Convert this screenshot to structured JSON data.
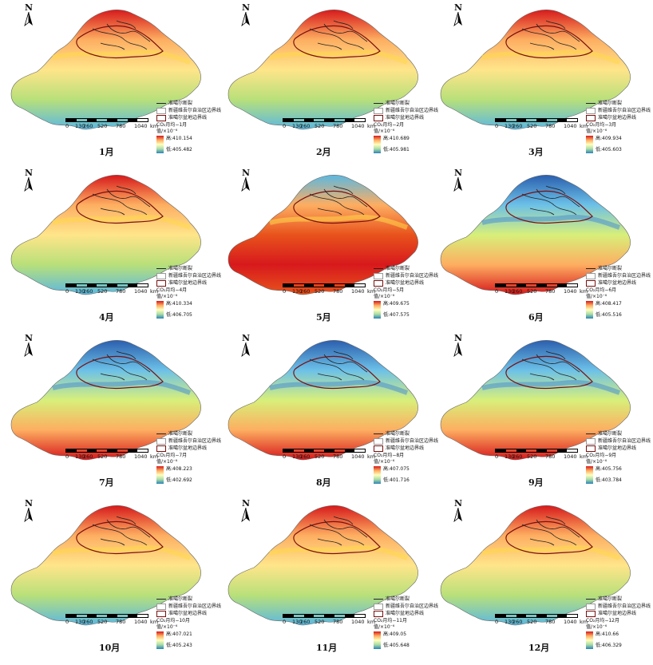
{
  "legend_labels": {
    "fault": "准噶尔断裂",
    "xinjiang_boundary": "新疆维吾尔自治区边界线",
    "basin_boundary": "准噶尔盆地边界线",
    "unit": "值/×10⁻⁶",
    "high_prefix": "高:",
    "low_prefix": "低:"
  },
  "north_label": "N",
  "scale_bar": {
    "labels": [
      "0",
      "130",
      "260",
      "520",
      "780",
      "1040"
    ],
    "unit": "km"
  },
  "colors": {
    "high": "#d7191c",
    "mid_high": "#fdae61",
    "mid": "#ffffbf",
    "mid_low": "#abdda4",
    "low": "#2b83ba",
    "basin_line": "#7a1010"
  },
  "panels": [
    {
      "month": "1月",
      "series_title": "CO₂月均−1月",
      "high": "410.154",
      "low": "405.482",
      "pattern": "north-hot"
    },
    {
      "month": "2月",
      "series_title": "CO₂月均−2月",
      "high": "410.689",
      "low": "405.981",
      "pattern": "north-hot"
    },
    {
      "month": "3月",
      "series_title": "CO₂月均−3月",
      "high": "409.934",
      "low": "405.603",
      "pattern": "north-hot"
    },
    {
      "month": "4月",
      "series_title": "CO₂月均−4月",
      "high": "410.334",
      "low": "406.705",
      "pattern": "north-hot"
    },
    {
      "month": "5月",
      "series_title": "CO₂月均−5月",
      "high": "409.675",
      "low": "407.575",
      "pattern": "south-hot"
    },
    {
      "month": "6月",
      "series_title": "CO₂月均−6月",
      "high": "408.417",
      "low": "405.516",
      "pattern": "north-cold"
    },
    {
      "month": "7月",
      "series_title": "CO₂月均−7月",
      "high": "408.223",
      "low": "402.692",
      "pattern": "north-cold"
    },
    {
      "month": "8月",
      "series_title": "CO₂月均−8月",
      "high": "407.075",
      "low": "401.716",
      "pattern": "north-cold"
    },
    {
      "month": "9月",
      "series_title": "CO₂月均−9月",
      "high": "405.756",
      "low": "403.784",
      "pattern": "north-cold"
    },
    {
      "month": "10月",
      "series_title": "CO₂月均−10月",
      "high": "407.021",
      "low": "405.243",
      "pattern": "north-hot"
    },
    {
      "month": "11月",
      "series_title": "CO₂月均−11月",
      "high": "409.05",
      "low": "405.648",
      "pattern": "north-hot"
    },
    {
      "month": "12月",
      "series_title": "CO₂月均−12月",
      "high": "410.66",
      "low": "406.329",
      "pattern": "north-hot"
    }
  ]
}
